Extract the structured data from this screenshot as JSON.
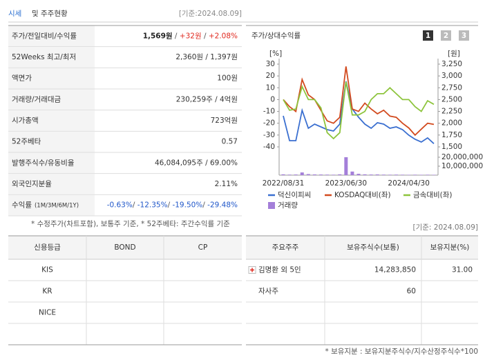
{
  "header": {
    "title_main": "시세",
    "title_rest": "및 주주현황",
    "date": "[기준:2024.08.09]"
  },
  "price_table": {
    "rows": [
      {
        "label": "주가/전일대비/수익률",
        "value": [
          {
            "text": "1,569원",
            "color": "#222222",
            "bold": true
          },
          {
            "text": " / ",
            "color": "#555555"
          },
          {
            "text": "+32원",
            "color": "#e0281e"
          },
          {
            "text": " / ",
            "color": "#555555"
          },
          {
            "text": "+2.08%",
            "color": "#e0281e"
          }
        ]
      },
      {
        "label": "52Weeks 최고/최저",
        "value": [
          {
            "text": "2,360원 / 1,397원",
            "color": "#333333"
          }
        ]
      },
      {
        "label": "액면가",
        "value": [
          {
            "text": "100원",
            "color": "#333333"
          }
        ]
      },
      {
        "label": "거래량/거래대금",
        "value": [
          {
            "text": "230,259주 / 4억원",
            "color": "#333333"
          }
        ]
      },
      {
        "label": "시가총액",
        "value": [
          {
            "text": "723억원",
            "color": "#333333"
          }
        ]
      },
      {
        "label": "52주베타",
        "value": [
          {
            "text": "0.57",
            "color": "#333333"
          }
        ]
      },
      {
        "label": "발행주식수/유동비율",
        "value": [
          {
            "text": "46,084,095주 / 69.00%",
            "color": "#333333"
          }
        ]
      },
      {
        "label": "외국인지분율",
        "value": [
          {
            "text": "2.11%",
            "color": "#333333"
          }
        ]
      },
      {
        "label": "수익률",
        "sub": "(1M/3M/6M/1Y)",
        "value": [
          {
            "text": "-0.63%",
            "color": "#1f56c9"
          },
          {
            "text": "/ ",
            "color": "#555555"
          },
          {
            "text": "-12.35%",
            "color": "#1f56c9"
          },
          {
            "text": "/ ",
            "color": "#555555"
          },
          {
            "text": "-19.50%",
            "color": "#1f56c9"
          },
          {
            "text": "/ ",
            "color": "#555555"
          },
          {
            "text": "-29.48%",
            "color": "#1f56c9"
          }
        ]
      }
    ]
  },
  "note": "* 수정주가(차트포함), 보통주 기준, * 52주베타: 주간수익률 기준",
  "chart_data": {
    "type": "line",
    "title": "주가/상대수익률",
    "buttons": [
      "1",
      "2",
      "3"
    ],
    "y_unit": "[%]",
    "y2_unit": "[원]",
    "categories": [
      "2022/08/31",
      null,
      null,
      null,
      null,
      null,
      null,
      null,
      null,
      null,
      "2023/06/30",
      null,
      null,
      null,
      null,
      null,
      null,
      null,
      null,
      null,
      "2024/04/30",
      null,
      null,
      null,
      null
    ],
    "series": [
      {
        "name": "덕신이피씨",
        "color": "#3a6fd0",
        "axis": "y2",
        "values": [
          2156,
          1631,
          1631,
          2273,
          1894,
          1981,
          1923,
          1865,
          1835,
          1981,
          2885,
          2302,
          2127,
          1981,
          1894,
          2010,
          1981,
          1894,
          1923,
          1865,
          1748,
          1660,
          1602,
          1690,
          1569
        ]
      },
      {
        "name": "KOSDAQ대비(좌)",
        "color": "#d24a1e",
        "values": [
          0,
          -6,
          -10,
          17,
          4,
          0,
          -9,
          -18,
          -20,
          -15,
          28,
          -8,
          -10,
          -3,
          -8,
          -12,
          -9,
          -14,
          -15,
          -20,
          -24,
          -30,
          -25,
          -20,
          -21
        ]
      },
      {
        "name": "금속대비(좌)",
        "color": "#8dc43c",
        "values": [
          0,
          -9,
          -8,
          11,
          0,
          0,
          -7,
          -28,
          -33,
          -28,
          15,
          -13,
          -13,
          -10,
          0,
          5,
          5,
          10,
          5,
          0,
          0,
          -6,
          -10,
          -1,
          -4
        ]
      }
    ],
    "volume": {
      "name": "거래량",
      "color": "#a47fd9",
      "values": [
        900000,
        600000,
        700000,
        3000000,
        1200000,
        800000,
        700000,
        600000,
        500000,
        900000,
        20000000,
        4000000,
        1500000,
        900000,
        700000,
        800000,
        600000,
        500000,
        600000,
        500000,
        400000,
        500000,
        400000,
        500000,
        400000
      ],
      "ylim": [
        0,
        20000000
      ],
      "yticks": [
        {
          "value": 20000000,
          "label": "20,000,000"
        },
        {
          "value": 10000000,
          "label": "10,000,000"
        }
      ]
    },
    "ylim": [
      -40,
      30
    ],
    "yticks": [
      30,
      20,
      10,
      0,
      -10,
      -20,
      -30,
      -40
    ],
    "y2lim": [
      1500,
      3250
    ],
    "y2ticks": [
      {
        "value": 3250,
        "label": "3,250"
      },
      {
        "value": 3000,
        "label": "3,000"
      },
      {
        "value": 2750,
        "label": "2,750"
      },
      {
        "value": 2500,
        "label": "2,500"
      },
      {
        "value": 2250,
        "label": "2,250"
      },
      {
        "value": 2000,
        "label": "2,000"
      },
      {
        "value": 1750,
        "label": "1,750"
      },
      {
        "value": 1500,
        "label": "1,500"
      }
    ]
  },
  "chart_date": "[기준: 2024.08.09]",
  "credit_table": {
    "header": [
      "신용등급",
      "BOND",
      "CP"
    ],
    "rows": [
      [
        "KIS"
      ],
      [
        "KR"
      ],
      [
        "NICE"
      ]
    ]
  },
  "holder_table": {
    "header": [
      "주요주주",
      "보유주식수(보통)",
      "보유지분(%)"
    ],
    "rows": [
      [
        "김명환 외 5인",
        "14,283,850",
        "31.00"
      ],
      [
        "자사주",
        "60"
      ]
    ]
  },
  "holder_note": "* 보유지분 : 보유지분주식수/지수산정주식수*100"
}
